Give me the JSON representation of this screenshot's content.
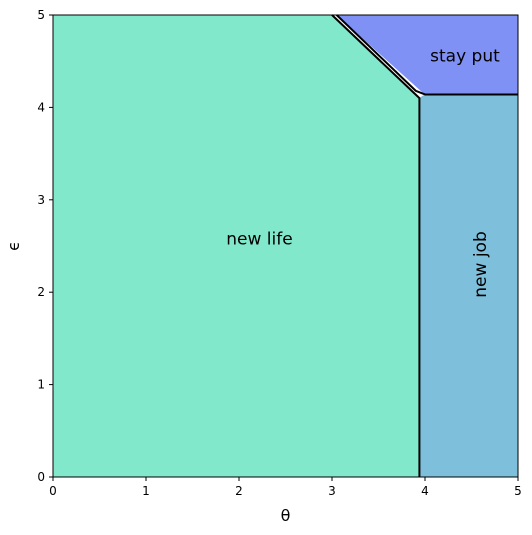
{
  "chart_data": {
    "type": "area",
    "xlabel": "θ",
    "ylabel": "ϵ",
    "xlim": [
      0,
      5
    ],
    "ylim": [
      0,
      5
    ],
    "xticks": [
      "0",
      "1",
      "2",
      "3",
      "4",
      "5"
    ],
    "yticks": [
      "0",
      "1",
      "2",
      "3",
      "4",
      "5"
    ],
    "grid": false,
    "regions": [
      {
        "name": "new life",
        "color": "#82e8cb",
        "label_at": [
          2.22,
          2.57
        ],
        "label_rotation": 0,
        "polygon": [
          [
            0,
            0
          ],
          [
            3.94,
            0
          ],
          [
            3.94,
            4.1
          ],
          [
            3.0,
            5.0
          ],
          [
            0,
            5.0
          ]
        ]
      },
      {
        "name": "new job",
        "color": "#7ebfdb",
        "label_at": [
          4.6,
          2.3
        ],
        "label_rotation": -90,
        "polygon": [
          [
            3.94,
            0
          ],
          [
            5.0,
            0
          ],
          [
            5.0,
            4.14
          ],
          [
            4.0,
            4.14
          ],
          [
            3.94,
            4.1
          ]
        ]
      },
      {
        "name": "stay put",
        "color": "#8091f5",
        "label_at": [
          4.43,
          4.55
        ],
        "label_rotation": 0,
        "polygon": [
          [
            3.05,
            5.0
          ],
          [
            5.0,
            5.0
          ],
          [
            5.0,
            4.14
          ],
          [
            4.0,
            4.14
          ]
        ]
      }
    ],
    "boundaries": [
      {
        "points": [
          [
            3.94,
            0
          ],
          [
            3.94,
            4.1
          ],
          [
            3.0,
            5.0
          ]
        ]
      },
      {
        "points": [
          [
            3.05,
            5.0
          ],
          [
            3.9,
            4.18
          ],
          [
            4.0,
            4.14
          ],
          [
            5.0,
            4.14
          ]
        ]
      }
    ]
  }
}
